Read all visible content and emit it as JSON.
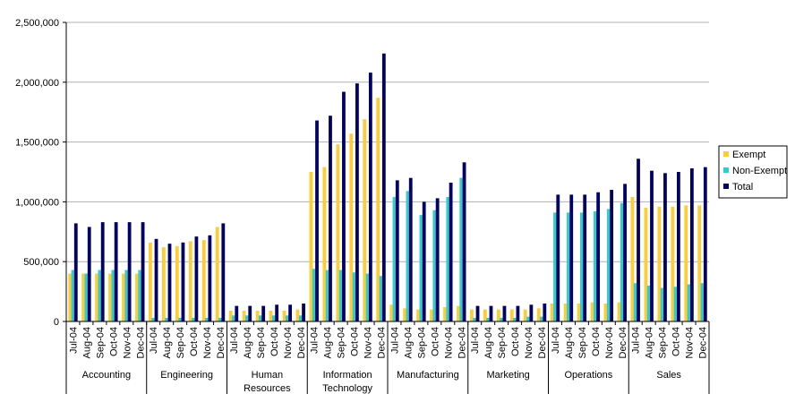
{
  "chart_data": {
    "type": "bar",
    "title": "",
    "xlabel": "",
    "ylabel": "",
    "ylim": [
      0,
      2500000
    ],
    "yticks": [
      0,
      500000,
      1000000,
      1500000,
      2000000,
      2500000
    ],
    "ytick_labels": [
      "0",
      "500,000",
      "1,000,000",
      "1,500,000",
      "2,000,000",
      "2,500,000"
    ],
    "grid": true,
    "legend_position": "right",
    "months": [
      "Jul-04",
      "Aug-04",
      "Sep-04",
      "Oct-04",
      "Nov-04",
      "Dec-04"
    ],
    "groups": [
      {
        "label_lines": [
          "Accounting"
        ]
      },
      {
        "label_lines": [
          "Engineering"
        ]
      },
      {
        "label_lines": [
          "Human",
          "Resources"
        ]
      },
      {
        "label_lines": [
          "Information",
          "Technology"
        ]
      },
      {
        "label_lines": [
          "Manufacturing"
        ]
      },
      {
        "label_lines": [
          "Marketing"
        ]
      },
      {
        "label_lines": [
          "Operations"
        ]
      },
      {
        "label_lines": [
          "Sales"
        ]
      }
    ],
    "series": [
      {
        "name": "Exempt",
        "color": "#FFCC33",
        "values": [
          [
            400000,
            400000,
            400000,
            400000,
            400000,
            400000
          ],
          [
            660000,
            620000,
            630000,
            670000,
            680000,
            790000
          ],
          [
            90000,
            90000,
            90000,
            90000,
            90000,
            100000
          ],
          [
            1250000,
            1290000,
            1480000,
            1570000,
            1690000,
            1870000
          ],
          [
            140000,
            110000,
            100000,
            100000,
            120000,
            130000
          ],
          [
            100000,
            100000,
            100000,
            100000,
            100000,
            110000
          ],
          [
            150000,
            150000,
            150000,
            160000,
            150000,
            160000
          ],
          [
            1040000,
            950000,
            960000,
            960000,
            970000,
            970000
          ]
        ]
      },
      {
        "name": "Non-Exempt",
        "color": "#33CCCC",
        "values": [
          [
            430000,
            400000,
            430000,
            430000,
            430000,
            430000
          ],
          [
            30000,
            30000,
            30000,
            30000,
            30000,
            30000
          ],
          [
            50000,
            50000,
            50000,
            50000,
            50000,
            50000
          ],
          [
            440000,
            430000,
            430000,
            410000,
            400000,
            380000
          ],
          [
            1040000,
            1090000,
            890000,
            930000,
            1040000,
            1200000
          ],
          [
            30000,
            30000,
            30000,
            30000,
            40000,
            40000
          ],
          [
            910000,
            910000,
            910000,
            920000,
            940000,
            990000
          ],
          [
            320000,
            300000,
            280000,
            290000,
            310000,
            320000
          ]
        ]
      },
      {
        "name": "Total",
        "color": "#000066",
        "values": [
          [
            820000,
            790000,
            830000,
            830000,
            830000,
            830000
          ],
          [
            690000,
            650000,
            660000,
            710000,
            720000,
            820000
          ],
          [
            130000,
            130000,
            130000,
            140000,
            140000,
            150000
          ],
          [
            1680000,
            1720000,
            1920000,
            1990000,
            2080000,
            2240000
          ],
          [
            1180000,
            1200000,
            1000000,
            1030000,
            1160000,
            1330000
          ],
          [
            130000,
            130000,
            130000,
            130000,
            140000,
            150000
          ],
          [
            1060000,
            1060000,
            1060000,
            1080000,
            1100000,
            1150000
          ],
          [
            1360000,
            1260000,
            1240000,
            1250000,
            1280000,
            1290000
          ]
        ]
      }
    ]
  }
}
